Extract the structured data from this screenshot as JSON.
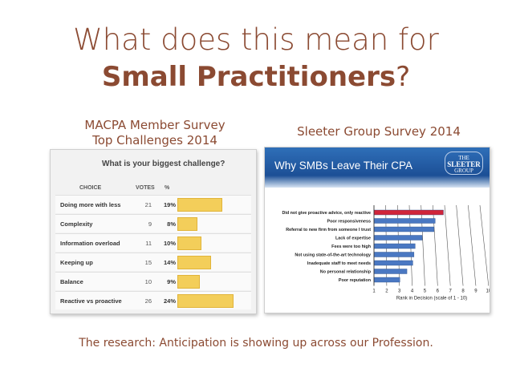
{
  "slide": {
    "title_line1": "What does this mean for",
    "title_bold": "Small Practitioners",
    "title_punct": "?",
    "caption_left_line1": "MACPA Member Survey",
    "caption_left_line2": "Top Challenges 2014",
    "caption_right": "Sleeter Group Survey 2014",
    "footer": "The research: Anticipation is showing up across our Profession."
  },
  "colors": {
    "accent": "#8b4a32",
    "bar_yellow": "#f3ce5a",
    "bar_red": "#d0253a",
    "bar_blue": "#4a78c2",
    "banner": "#1c4f96"
  },
  "chart_data": [
    {
      "type": "bar",
      "title": "What is your biggest challenge?",
      "headers": {
        "choice": "CHOICE",
        "votes": "VOTES",
        "percent": "%"
      },
      "categories": [
        "Doing more with less",
        "Complexity",
        "Information overload",
        "Keeping up",
        "Balance",
        "Reactive vs proactive"
      ],
      "votes": [
        21,
        9,
        11,
        15,
        10,
        26
      ],
      "percents": [
        19,
        8,
        10,
        14,
        9,
        24
      ],
      "percent_labels": [
        "19%",
        "8%",
        "10%",
        "14%",
        "9%",
        "24%"
      ],
      "xlim": [
        0,
        24
      ]
    },
    {
      "type": "bar",
      "orientation": "horizontal",
      "title": "Why SMBs Leave Their CPA",
      "logo_text": {
        "small": "THE",
        "main": "SLEETER",
        "sub": "GROUP"
      },
      "categories": [
        "Did not give proactive advice, only reactive",
        "Poor responsiveness",
        "Referral to new firm from someone I trust",
        "Lack of expertise",
        "Fees were too high",
        "Not using state-of-the-art technology",
        "Inadequate staff to meet needs",
        "No personal relationship",
        "Poor reputation"
      ],
      "values": [
        6.9,
        6.2,
        6.1,
        5.1,
        4.5,
        4.4,
        4.3,
        3.8,
        3.2
      ],
      "highlight_index": 0,
      "xticks": [
        "1",
        "2",
        "3",
        "4",
        "5",
        "6",
        "7",
        "8",
        "9",
        "10"
      ],
      "xlim": [
        1,
        10
      ],
      "xlabel": "Rank in Decision (scale of 1 - 10)"
    }
  ]
}
